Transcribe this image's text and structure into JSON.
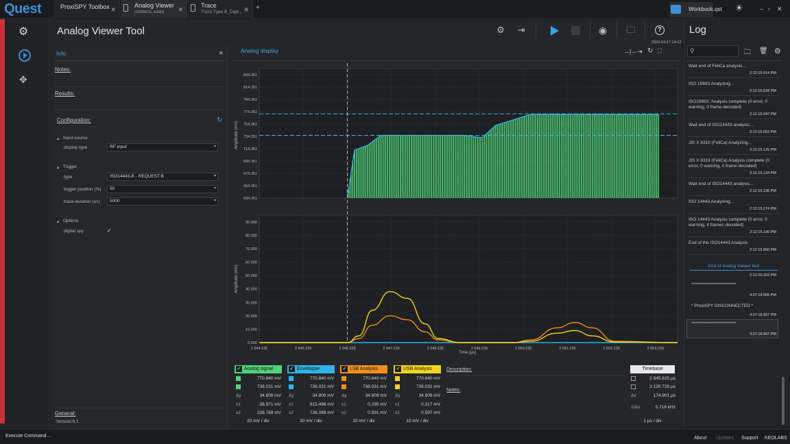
{
  "app": {
    "logo": "Quest",
    "workbook": "Workbook.qst"
  },
  "tabs": [
    {
      "title": "ProxiSPY Toolbox",
      "subtitle": ""
    },
    {
      "title": "Analog Viewer",
      "subtitle": "Untitled1.xdata"
    },
    {
      "title": "Trace",
      "subtitle": "Trace Type B_Digit..."
    }
  ],
  "window_controls": {
    "min": "–",
    "max": "▫",
    "close": "✕"
  },
  "tool": {
    "title": "Analog Viewer Tool"
  },
  "info": {
    "title": "Info",
    "notes": "Notes:",
    "results": "Results:",
    "configuration": "Configuration:",
    "input_source": "Input source",
    "display_type_label": "display type",
    "display_type_value": "RF input",
    "trigger": "Trigger",
    "type_label": "type",
    "type_value": "ISO14443-B - REQUEST B",
    "trigger_position_label": "trigger position (%)",
    "trigger_position_value": "50",
    "trace_duration_label": "trace duration (us)",
    "trace_duration_value": "5000",
    "options": "Options",
    "digital_spy_label": "digital spy",
    "general": "General:",
    "version": "Version:0.1"
  },
  "analog": {
    "title": "Analog display",
    "timestamp": "2020-04-17 14:12",
    "xlabel": "Time (μs)",
    "ylabel_top": "Amplitude (mV)",
    "ylabel_bottom": "Amplitude (mV)"
  },
  "chart_data": [
    {
      "type": "area",
      "title": "",
      "ylabel": "Amplitude (mV)",
      "y_ticks": [
        "834.351",
        "814.351",
        "794.351",
        "774.351",
        "754.351",
        "734.351",
        "714.351",
        "694.351",
        "674.351",
        "654.351",
        "634.351"
      ],
      "ylim": [
        634.351,
        844.351
      ],
      "cursors_mV": [
        770.84,
        736.031
      ],
      "series": [
        {
          "name": "Analog signal",
          "x": [
            2946.235,
            2946.4,
            2946.7,
            2947.0,
            2947.8,
            2948.9,
            2949.3,
            2949.6,
            2950.4,
            2951.0,
            2951.5,
            2953.3
          ],
          "values": [
            634.351,
            712,
            720,
            736,
            736,
            736,
            732,
            752,
            770,
            770,
            770,
            770
          ]
        }
      ]
    },
    {
      "type": "line",
      "title": "",
      "xlabel": "Time (μs)",
      "ylabel": "Amplitude (mV)",
      "x_ticks": [
        "2 944.235",
        "2 945.235",
        "2 946.235",
        "2 947.235",
        "2 948.235",
        "2 949.235",
        "2 950.235",
        "2 951.235",
        "2 952.235",
        "2 953.235"
      ],
      "xlim": [
        2944.235,
        2953.735
      ],
      "y_ticks": [
        "90.000",
        "80.000",
        "70.000",
        "60.000",
        "50.000",
        "40.000",
        "30.000",
        "20.000",
        "10.000",
        "0.000"
      ],
      "ylim": [
        0,
        95
      ],
      "x": [
        2944.235,
        2946.235,
        2946.5,
        2946.8,
        2947.2,
        2947.6,
        2948.0,
        2948.3,
        2948.8,
        2949.5,
        2950.0,
        2950.4,
        2951.0,
        2951.4,
        2951.8,
        2952.3,
        2953.735
      ],
      "series": [
        {
          "name": "USB Analysis",
          "values": [
            0,
            0,
            5,
            24,
            38,
            33,
            14,
            3,
            0,
            0,
            0,
            1,
            7,
            9,
            5,
            0.5,
            0
          ]
        },
        {
          "name": "LSB Analysis",
          "values": [
            0,
            0,
            3,
            13,
            20,
            17,
            8,
            2,
            0,
            0,
            0,
            2,
            11,
            15,
            11,
            1,
            0
          ]
        },
        {
          "name": "Enveloppe",
          "values": [
            0,
            0,
            0,
            0,
            0,
            0,
            0,
            0,
            0,
            0,
            0,
            0,
            0,
            0,
            0,
            0,
            0
          ]
        }
      ],
      "cursor_x": 2946.235
    }
  ],
  "colors": {
    "analog": "#4fd37a",
    "enveloppe": "#2fb4e8",
    "lsb": "#f0901e",
    "usb": "#f2d51c",
    "cursor": "#3ab6e8"
  },
  "measures": {
    "row_keys": [
      "Δy",
      "x1",
      "x2"
    ],
    "columns": [
      {
        "name": "Analog signal",
        "color": "#4fd37a",
        "y1": "770.840 mV",
        "y2": "736.031 mV",
        "dy": "34.809 mV",
        "x1": "-38.971 mV",
        "x2": "228.768 mV",
        "scale": "20 mV / div"
      },
      {
        "name": "Enveloppe",
        "color": "#2fb4e8",
        "y1": "770.840 mV",
        "y2": "736.031 mV",
        "dy": "34.809 mV",
        "x1": "615.496 mV",
        "x2": "736.089 mV",
        "scale": "20 mV / div"
      },
      {
        "name": "LSB Analysis",
        "color": "#f0901e",
        "y1": "770.840 mV",
        "y2": "736.031 mV",
        "dy": "34.809 mV",
        "x1": "0.295 mV",
        "x2": "0.591 mV",
        "scale": "10 mV / div"
      },
      {
        "name": "USB Analysis",
        "color": "#f2d51c",
        "y1": "770.840 mV",
        "y2": "736.031 mV",
        "dy": "34.809 mV",
        "x1": "0.317 mV",
        "x2": "0.597 mV",
        "scale": "10 mV / div"
      }
    ],
    "description": "Description:",
    "notes": "Notes:"
  },
  "timebase": {
    "title": "Timebase",
    "t1": "2 945.825 μs",
    "t2": "3 120.726 μs",
    "dx_label": "Δx",
    "dx": "174.901 μs",
    "inv_label": "1/Δx",
    "inv": "5.718 kHz",
    "scale": "1 μs / div"
  },
  "log": {
    "title": "Log",
    "search_placeholder": "",
    "entries": [
      {
        "text": "Wait end of FeliCa analysis...",
        "time": "2:12:15.014 PM"
      },
      {
        "text": "ISO 15693 Analyzing...",
        "time": "2:12:15.028 PM"
      },
      {
        "text": "ISO15693: Analysis complete (0 error, 0 warning, 0 frame decoded)",
        "time": "2:12:15.047 PM"
      },
      {
        "text": "Wait end of ISO14443 analysis...",
        "time": "2:12:15.052 PM"
      },
      {
        "text": "JIS X 6319 (FeliCa) Analyzing...",
        "time": "2:12:15.125 PM"
      },
      {
        "text": "JIS X 6319 (FeliCa) Analysis complete (0 error, 0 warning, 0 frame decoded)",
        "time": "2:12:15.134 PM"
      },
      {
        "text": "Wait end of ISO14443 analysis...",
        "time": "2:12:15.136 PM"
      },
      {
        "text": "ISO 14443 Analyzing...",
        "time": "2:12:15.174 PM"
      },
      {
        "text": "ISO 14443 Analysis complete (0 error, 0 warning, 4 frames decoded)",
        "time": "2:12:15.196 PM"
      },
      {
        "text": "End of the ISO14443 Analysis",
        "time": "2:12:15.860 PM"
      }
    ],
    "end_label": "End of Analog Viewer test",
    "end_time": "2:12:20.203 PM",
    "stars1": "****************************",
    "time1": "4:07:18.906 PM",
    "disconnected": "* ProxiSPY DISCONNECTED *",
    "time2": "4:07:18.907 PM",
    "stars2": "****************************",
    "time3": "4:07:18.907 PM"
  },
  "status": {
    "left": "Execute Command ...",
    "about": "About",
    "updates": "Updates",
    "support": "Support",
    "company": "KEOLABS"
  }
}
